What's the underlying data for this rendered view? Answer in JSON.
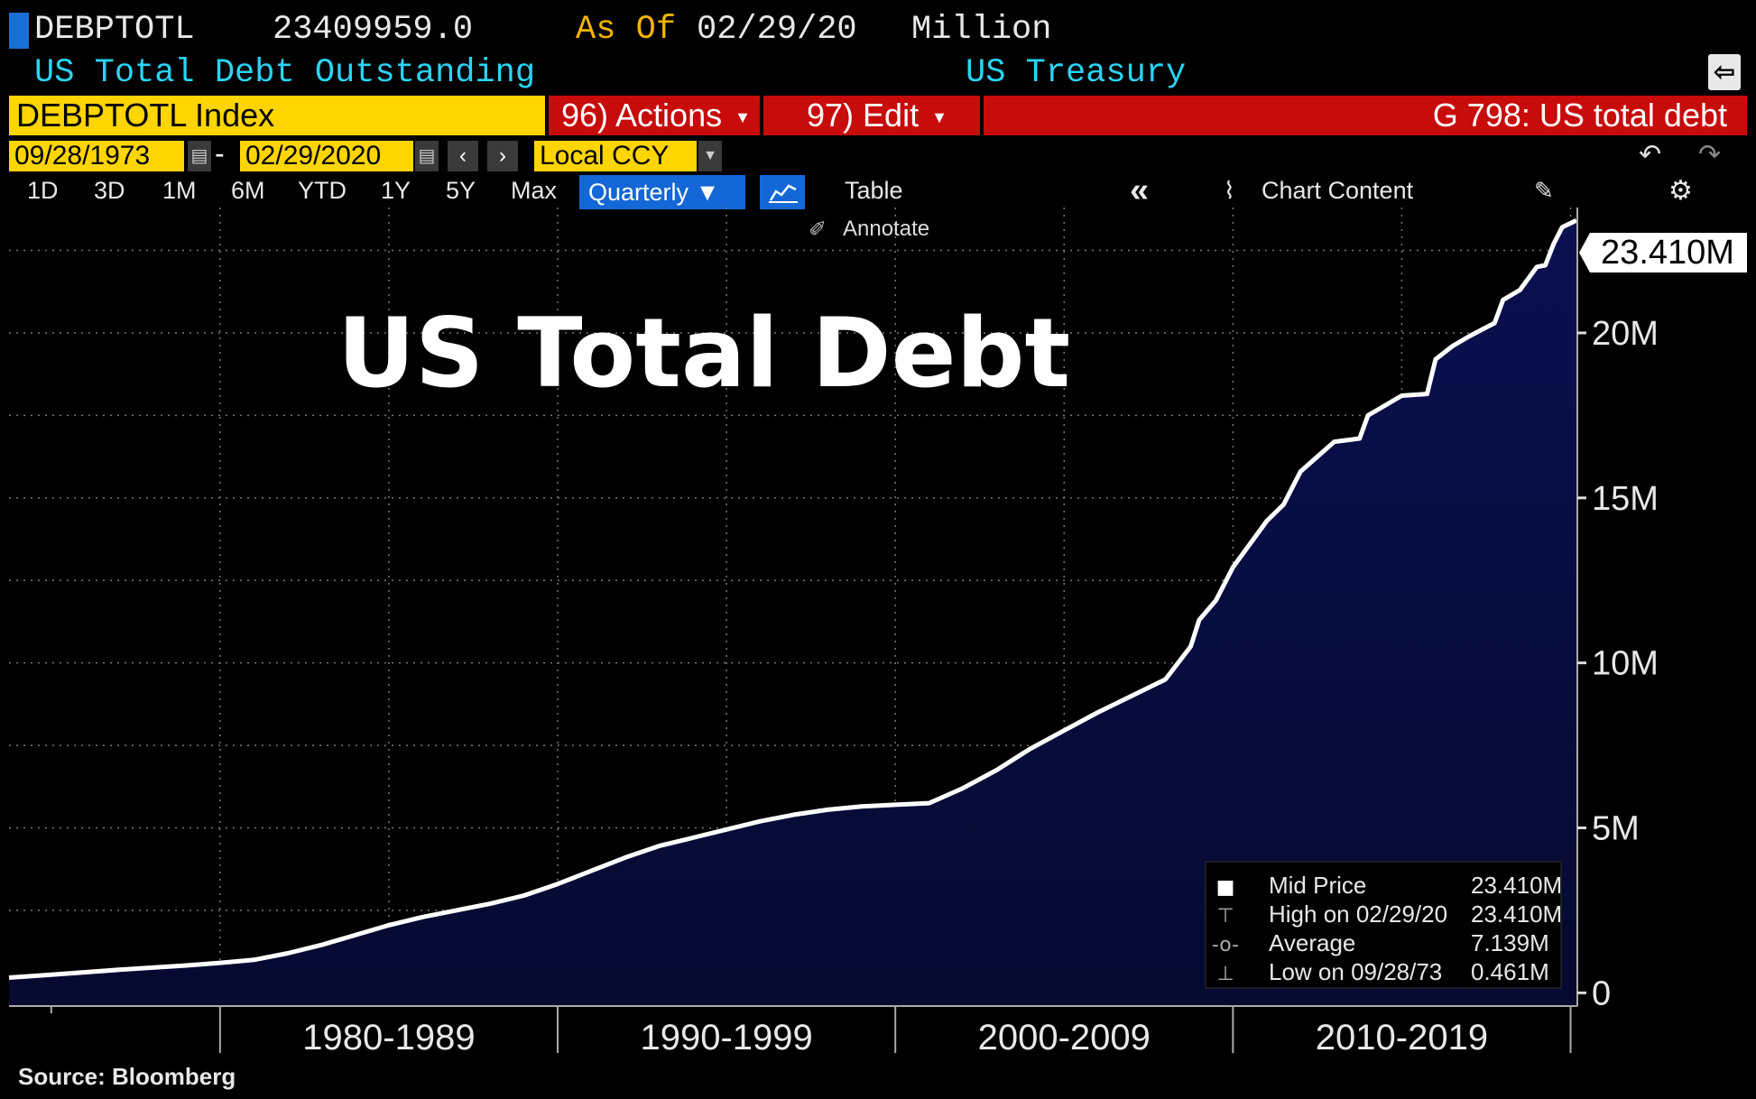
{
  "header": {
    "ticker": "DEBPTOTL",
    "last_value": "23409959.0",
    "as_of_label": "As Of",
    "as_of_date": "02/29/20",
    "units": "Million",
    "security_name": "US Total Debt Outstanding",
    "source_name": "US Treasury",
    "index_field": "DEBPTOTL Index",
    "actions_label": "96) Actions",
    "edit_label": "97) Edit",
    "chart_title": "G 798: US total debt"
  },
  "date_range": {
    "start": "09/28/1973",
    "separator": "-",
    "end": "02/29/2020",
    "currency": "Local CCY"
  },
  "toolbar": {
    "ranges": [
      "1D",
      "3D",
      "1M",
      "6M",
      "YTD",
      "1Y",
      "5Y",
      "Max"
    ],
    "frequency": "Quarterly",
    "table_label": "Table",
    "chart_content_label": "Chart Content",
    "annotate_label": "Annotate"
  },
  "icons": {
    "export": "export-icon",
    "undo": "undo-icon",
    "redo": "redo-icon",
    "calendar": "calendar-icon",
    "collapse": "double-chevron-left-icon",
    "settings": "gear-icon"
  },
  "colors": {
    "ticker_text": "#e8e8e8",
    "as_of": "#f5b400",
    "security_name": "#2ad4f5",
    "index_field": "#fed500",
    "action_bar": "#c80b0b",
    "button_active": "#1367d6",
    "area_fill": "#0a1050",
    "line": "#ffffff"
  },
  "overlay_title": "US Total Debt",
  "last_price_tag": "23.410M",
  "legend": {
    "rows": [
      {
        "label": "Mid Price",
        "value": "23.410M"
      },
      {
        "label": "High on 02/29/20",
        "value": "23.410M"
      },
      {
        "label": "Average",
        "value": "7.139M"
      },
      {
        "label": "Low on 09/28/73",
        "value": "0.461M"
      }
    ]
  },
  "footer": {
    "source": "Source: Bloomberg"
  },
  "chart_data": {
    "type": "area",
    "title": "US Total Debt",
    "series": [
      {
        "name": "Mid Price",
        "x": [
          1973.75,
          1975,
          1977,
          1979,
          1980,
          1981,
          1982,
          1983,
          1984,
          1985,
          1986,
          1987,
          1988,
          1989,
          1990,
          1991,
          1992,
          1993,
          1994,
          1995,
          1996,
          1997,
          1998,
          1999,
          2000,
          2001,
          2002,
          2003,
          2004,
          2005,
          2006,
          2007,
          2008,
          2008.75,
          2009,
          2009.5,
          2010,
          2011,
          2011.5,
          2012,
          2013,
          2013.75,
          2014,
          2015,
          2015.75,
          2016,
          2016.5,
          2017,
          2017.75,
          2018,
          2018.5,
          2019,
          2019.25,
          2019.5,
          2019.75,
          2020.17
        ],
        "values": [
          0.461,
          0.55,
          0.7,
          0.83,
          0.91,
          1.0,
          1.2,
          1.45,
          1.75,
          2.05,
          2.3,
          2.5,
          2.7,
          2.95,
          3.3,
          3.7,
          4.1,
          4.45,
          4.7,
          4.95,
          5.2,
          5.4,
          5.55,
          5.65,
          5.7,
          5.75,
          6.2,
          6.75,
          7.4,
          7.95,
          8.5,
          9.0,
          9.5,
          10.5,
          11.3,
          11.9,
          12.9,
          14.3,
          14.8,
          15.8,
          16.7,
          16.8,
          17.5,
          18.1,
          18.15,
          19.2,
          19.6,
          19.9,
          20.3,
          21.0,
          21.3,
          22.0,
          22.05,
          22.7,
          23.2,
          23.41
        ]
      }
    ],
    "x_tick_labels": [
      "1980-1989",
      "1990-1999",
      "2000-2009",
      "2010-2019"
    ],
    "x_range": [
      1973.75,
      2020.2
    ],
    "y_tick_labels": [
      "0",
      "5M",
      "10M",
      "15M",
      "20M"
    ],
    "y_ticks": [
      0,
      5,
      10,
      15,
      20
    ],
    "y_range": [
      -0.4,
      23.8
    ],
    "y_units": "Million",
    "grid": true,
    "legend_position": "bottom-right"
  }
}
